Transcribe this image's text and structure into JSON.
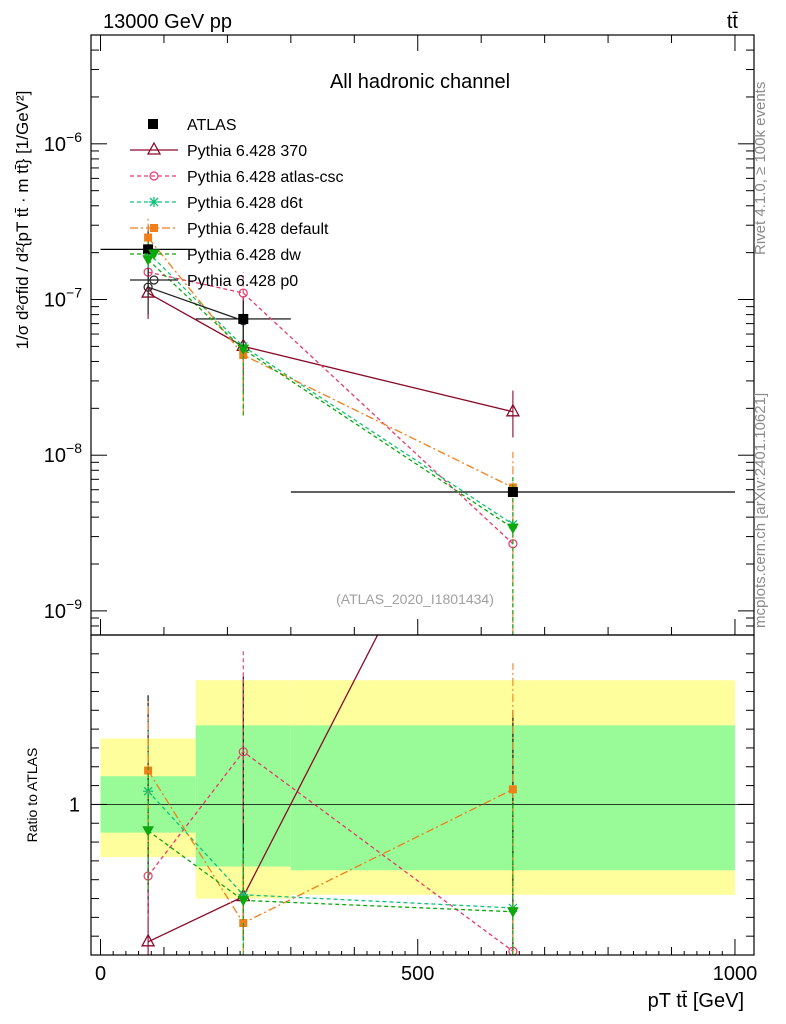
{
  "header": {
    "energy_label": "13000 GeV pp",
    "process_label": "tt̄"
  },
  "side_labels": {
    "rivet": "Rivet 4.1.0, ≥ 100k events",
    "mcplots": "mcplots.cern.ch [arXiv:2401.10621]"
  },
  "chart_data": {
    "type": "scatter",
    "title": "All hadronic channel",
    "reference": "(ATLAS_2020_I1801434)",
    "xlabel": "p_T^{t̄t} [GeV]",
    "xlabel_text": "pT tt̄ [GeV]",
    "ylabel": "#d\\frac{1}{σ}#d\\frac{d^2σ^{fid}}{d^2 {p_T^{t̄t} #cdot m^{t̄t}}} [1/GeV^2]",
    "ylabel_text": "1/σ d²σfid / d²{pT tt̄ · m tt̄} [1/GeV²]",
    "xlim": [
      -15,
      1030
    ],
    "ylim": [
      7e-10,
      5e-06
    ],
    "yscale": "log",
    "x_ticks": [
      0,
      500,
      1000
    ],
    "x_tick_labels": [
      "0",
      "500",
      "1000"
    ],
    "y_tick_labels": [
      "10^-9",
      "10^-8",
      "10^-7",
      "10^-6"
    ],
    "bins": [
      [
        0,
        150
      ],
      [
        150,
        300
      ],
      [
        300,
        1000
      ]
    ],
    "x": [
      75,
      225,
      650
    ],
    "data": {
      "name": "ATLAS",
      "y": [
        2.1e-07,
        7.5e-08,
        5.8e-09
      ],
      "yerr": [
        [
          1.2e-07,
          4.5e-08,
          5.5e-09
        ],
        [
          3e-07,
          1.05e-07,
          6.1e-09
        ]
      ]
    },
    "series": [
      {
        "name": "Pythia 6.428 370",
        "color": "#8b0a2a",
        "dash": "",
        "marker": "triangle",
        "y": [
          1.1e-07,
          5e-08,
          1.9e-08
        ],
        "ylo": [
          7.5e-08,
          2.5e-08,
          1.3e-08
        ],
        "yhi": [
          1.5e-07,
          7.5e-08,
          2.6e-08
        ]
      },
      {
        "name": "Pythia 6.428 atlas-csc",
        "color": "#e8386a",
        "dash": "4,3",
        "marker": "circle",
        "y": [
          1.5e-07,
          1.1e-07,
          2.7e-09
        ],
        "ylo": [
          1e-07,
          8e-08,
          1e-11
        ],
        "yhi": [
          2e-07,
          1.5e-07,
          5.5e-09
        ]
      },
      {
        "name": "Pythia 6.428 d6t",
        "color": "#13c07a",
        "dash": "4,3",
        "marker": "star",
        "y": [
          2e-07,
          5e-08,
          3.6e-09
        ],
        "ylo": [
          1.3e-07,
          2e-08,
          1e-11
        ],
        "yhi": [
          2.7e-07,
          8.5e-08,
          7.5e-09
        ]
      },
      {
        "name": "Pythia 6.428 default",
        "color": "#f07f1a",
        "dash": "8,3,2,3",
        "marker": "square",
        "y": [
          2.5e-07,
          4.4e-08,
          6.2e-09
        ],
        "ylo": [
          1.7e-07,
          1.8e-08,
          1e-11
        ],
        "yhi": [
          3.3e-07,
          7.5e-08,
          1.05e-08
        ]
      },
      {
        "name": "Pythia 6.428 dw",
        "color": "#0ca80c",
        "dash": "4,3",
        "marker": "tri-down",
        "y": [
          1.8e-07,
          4.8e-08,
          3.4e-09
        ],
        "ylo": [
          1.2e-07,
          1.8e-08,
          1e-11
        ],
        "yhi": [
          2.4e-07,
          8e-08,
          7.5e-09
        ]
      },
      {
        "name": "Pythia 6.428 p0",
        "color": "#222222",
        "dash": "",
        "marker": "circle",
        "y": [
          1.2e-07,
          7.3e-08,
          null
        ],
        "ylo": [
          8e-08,
          5e-08,
          null
        ],
        "yhi": [
          1.6e-07,
          9.5e-08,
          null
        ]
      }
    ],
    "ratio": {
      "ylabel": "Ratio to ATLAS",
      "ylim": [
        0.2,
        1.9
      ],
      "y_tick_labels": [
        "1"
      ],
      "band_inner": [
        [
          0.85,
          1.15
        ],
        [
          0.67,
          1.42
        ],
        [
          0.65,
          1.42
        ]
      ],
      "band_outer": [
        [
          0.72,
          1.35
        ],
        [
          0.5,
          1.66
        ],
        [
          0.52,
          1.66
        ]
      ],
      "data_err": [
        [
          0.42,
          1.58
        ],
        [
          0.28,
          1.68
        ],
        [
          0.05,
          1.5
        ]
      ],
      "series": [
        {
          "name": "Pythia 6.428 370",
          "y": [
            0.27,
            0.51,
            3.3
          ],
          "ylo": [
            0.06,
            0.28,
            2.2
          ],
          "yhi": [
            0.48,
            0.74,
            4.4
          ]
        },
        {
          "name": "Pythia 6.428 atlas-csc",
          "y": [
            0.62,
            1.28,
            0.22
          ],
          "ylo": [
            0.4,
            0.9,
            0.05
          ],
          "yhi": [
            1.5,
            1.82,
            1.0
          ]
        },
        {
          "name": "Pythia 6.428 d6t",
          "y": [
            1.07,
            0.52,
            0.45
          ],
          "ylo": [
            0.7,
            0.25,
            0.05
          ],
          "yhi": [
            1.45,
            0.8,
            1.0
          ]
        },
        {
          "name": "Pythia 6.428 default",
          "y": [
            1.18,
            0.37,
            1.08
          ],
          "ylo": [
            0.8,
            0.05,
            0.1
          ],
          "yhi": [
            1.55,
            0.7,
            1.75
          ]
        },
        {
          "name": "Pythia 6.428 dw",
          "y": [
            0.86,
            0.49,
            0.43
          ],
          "ylo": [
            0.55,
            0.2,
            0.05
          ],
          "yhi": [
            1.2,
            0.76,
            1.0
          ]
        }
      ]
    }
  }
}
